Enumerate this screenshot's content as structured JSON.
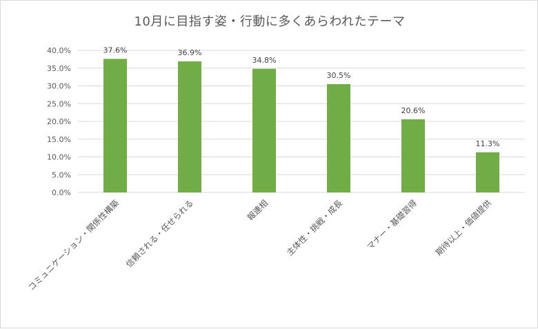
{
  "chart_data": {
    "type": "bar",
    "title": "10月に目指す姿・行動に多くあらわれたテーマ",
    "categories": [
      "コミュニケーション・関係性構築",
      "信頼される・任せられる",
      "報連相",
      "主体性・挑戦・成長",
      "マナー・基礎習得",
      "期待以上・価値提供"
    ],
    "values": [
      37.6,
      36.9,
      34.8,
      30.5,
      20.6,
      11.3
    ],
    "data_labels": [
      "37.6%",
      "36.9%",
      "34.8%",
      "30.5%",
      "20.6%",
      "11.3%"
    ],
    "y_ticks": [
      "0.0%",
      "5.0%",
      "10.0%",
      "15.0%",
      "20.0%",
      "25.0%",
      "30.0%",
      "35.0%",
      "40.0%"
    ],
    "ylim": [
      0,
      40
    ],
    "xlabel": "",
    "ylabel": "",
    "grid": true,
    "legend": "none",
    "bar_color": "#70ad47",
    "grid_color": "#d9d9d9"
  }
}
